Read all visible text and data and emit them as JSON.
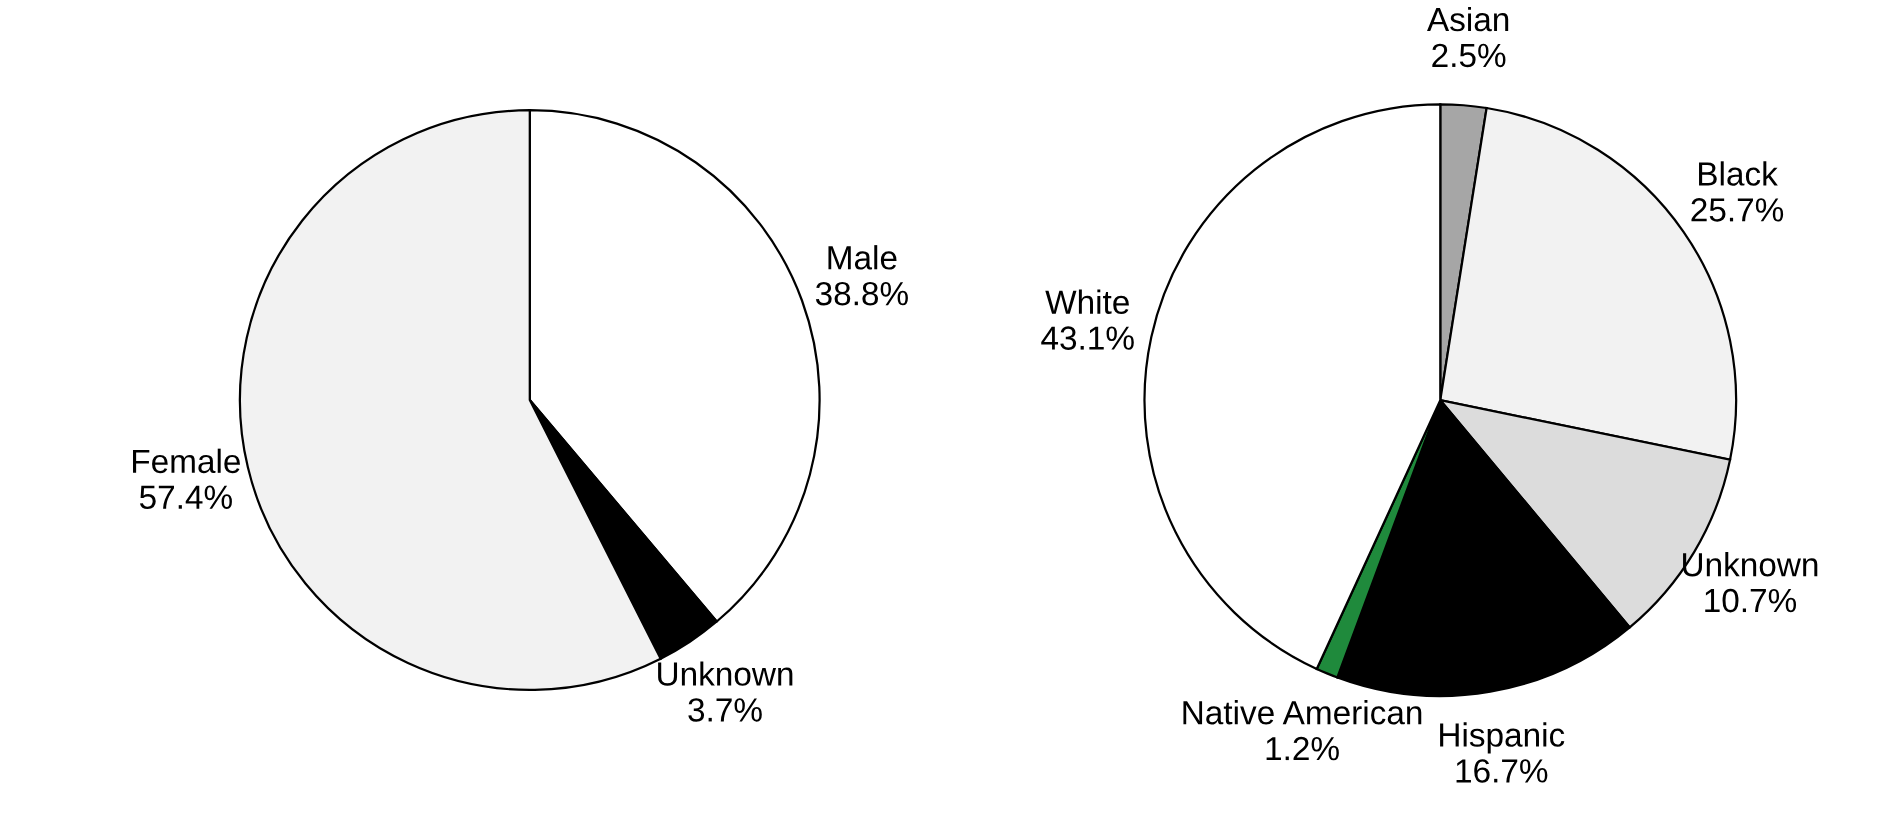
{
  "chart_data": [
    {
      "type": "pie",
      "categories": [
        "Male",
        "Unknown",
        "Female"
      ],
      "values": [
        38.8,
        3.7,
        57.4
      ],
      "value_labels": [
        "38.8%",
        "3.7%",
        "57.4%"
      ],
      "colors": [
        "#ffffff",
        "#000000",
        "#f2f2f2"
      ]
    },
    {
      "type": "pie",
      "categories": [
        "Asian",
        "Black",
        "Unknown",
        "Hispanic",
        "Native American",
        "White"
      ],
      "values": [
        2.5,
        25.7,
        10.7,
        16.7,
        1.2,
        43.1
      ],
      "value_labels": [
        "2.5%",
        "25.7%",
        "10.7%",
        "16.7%",
        "1.2%",
        "43.1%"
      ],
      "colors": [
        "#a6a6a6",
        "#f2f2f2",
        "#dcdcdc",
        "#000000",
        "#1f8a3c",
        "#ffffff"
      ]
    }
  ]
}
